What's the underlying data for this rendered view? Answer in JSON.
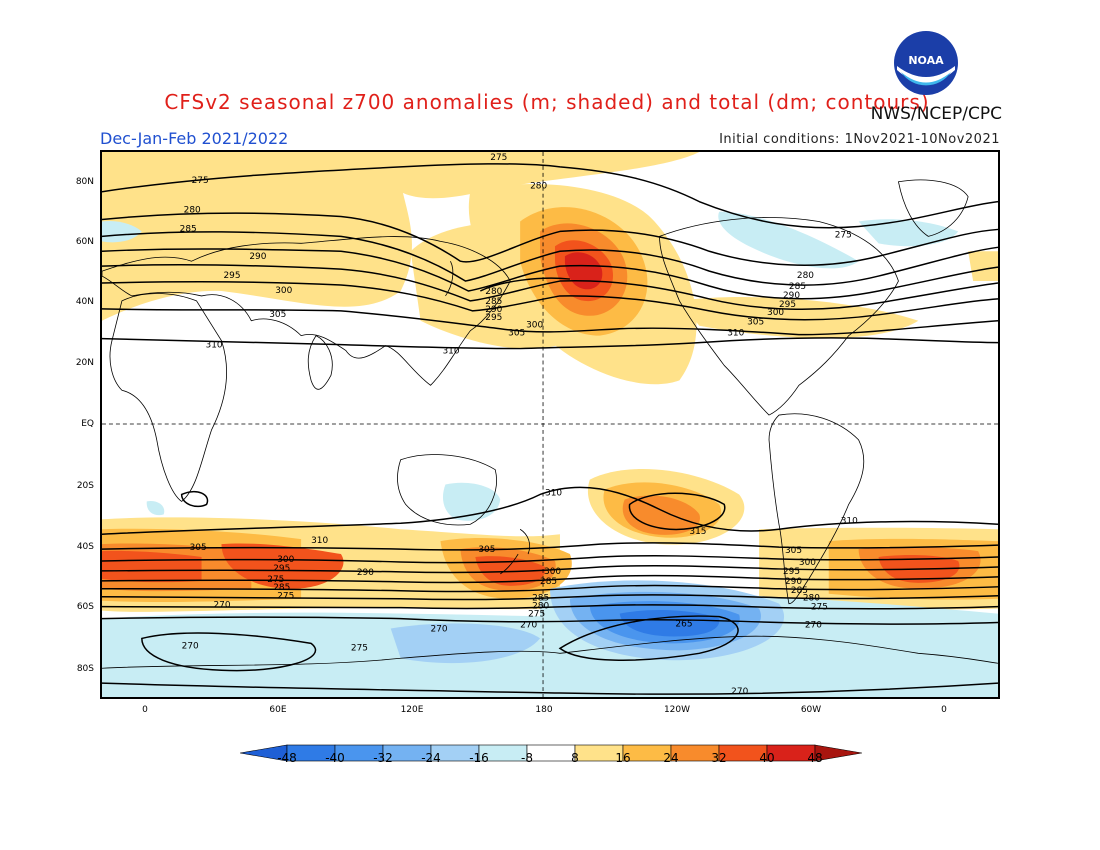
{
  "title": "CFSv2 seasonal z700 anomalies (m; shaded) and total (dm; contours)",
  "agency": "NWS/NCEP/CPC",
  "logo_text": "NOAA",
  "season": "Dec-Jan-Feb 2021/2022",
  "initial_conditions": "Initial conditions: 1Nov2021-10Nov2021",
  "latitude_labels": [
    "80N",
    "60N",
    "40N",
    "20N",
    "EQ",
    "20S",
    "40S",
    "60S",
    "80S"
  ],
  "longitude_labels": [
    "0",
    "60E",
    "120E",
    "180",
    "120W",
    "60W",
    "0"
  ],
  "colorbar": {
    "labels": [
      "-48",
      "-40",
      "-32",
      "-24",
      "-16",
      "-8",
      "8",
      "16",
      "24",
      "32",
      "40",
      "48"
    ],
    "colors": [
      "#1e5fd6",
      "#2f7be6",
      "#4a95ee",
      "#74b2f2",
      "#a3d0f5",
      "#c8edf4",
      "#ffffff",
      "#ffe28a",
      "#fdbb45",
      "#f88b2c",
      "#f2531c",
      "#d9221a",
      "#a8150f"
    ]
  },
  "contour_labels": {
    "north": [
      "275",
      "280",
      "285",
      "290",
      "295",
      "300",
      "305",
      "310",
      "315"
    ],
    "south": [
      "310",
      "305",
      "300",
      "295",
      "290",
      "285",
      "280",
      "275",
      "270",
      "265",
      "315"
    ]
  },
  "chart_data": {
    "type": "map",
    "projection": "cylindrical equidistant",
    "variable": "z700",
    "lon_range": [
      -20,
      380
    ],
    "lat_range": [
      -90,
      90
    ],
    "anomaly_centers_m": [
      {
        "lon": 190,
        "lat": 45,
        "value": 48
      },
      {
        "lon": 230,
        "lat": -30,
        "value": 32
      },
      {
        "lon": 160,
        "lat": -52,
        "value": 32
      },
      {
        "lon": 30,
        "lat": -50,
        "value": 32
      },
      {
        "lon": 340,
        "lat": -50,
        "value": 32
      },
      {
        "lon": 230,
        "lat": -65,
        "value": -40
      },
      {
        "lon": 130,
        "lat": -28,
        "value": -16
      },
      {
        "lon": 250,
        "lat": 55,
        "value": -16
      },
      {
        "lon": 300,
        "lat": 55,
        "value": -16
      }
    ],
    "total_contours_dm": [
      265,
      270,
      275,
      280,
      285,
      290,
      295,
      300,
      305,
      310,
      315
    ]
  }
}
